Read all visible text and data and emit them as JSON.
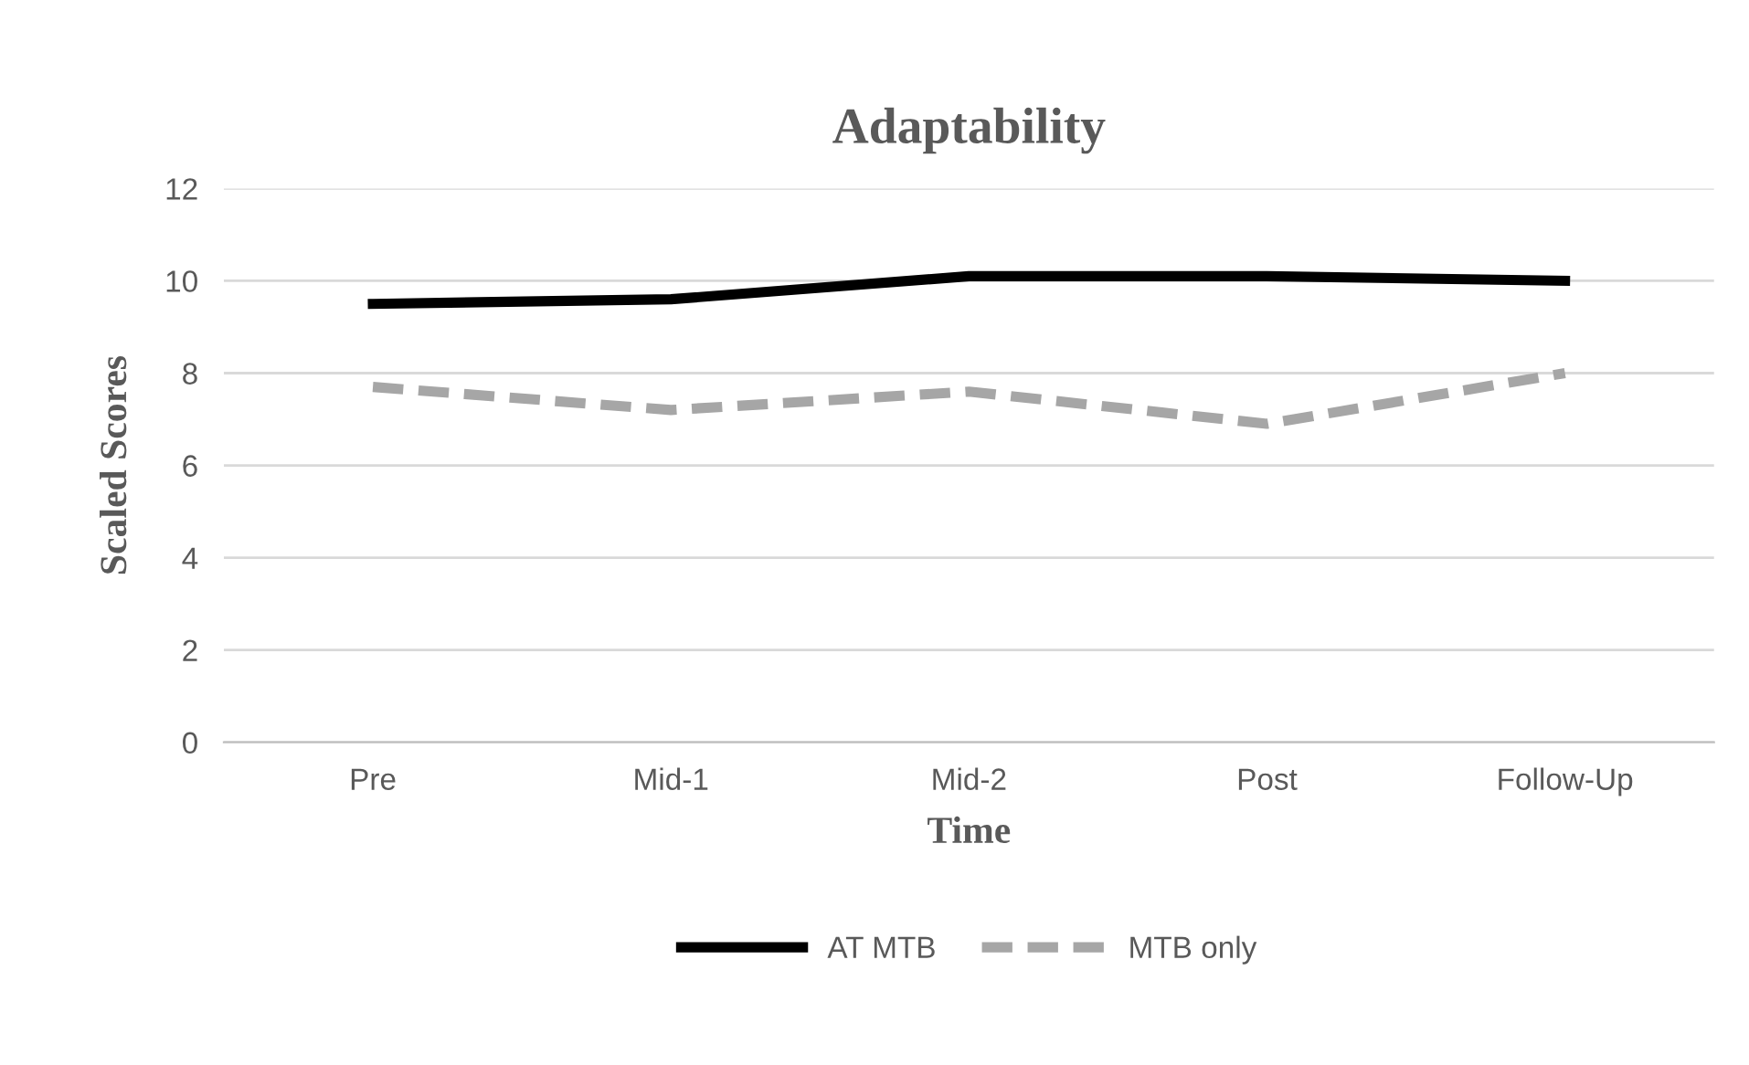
{
  "chart_data": {
    "type": "line",
    "title": "Adaptability",
    "xlabel": "Time",
    "ylabel": "Scaled Scores",
    "categories": [
      "Pre",
      "Mid-1",
      "Mid-2",
      "Post",
      "Follow-Up"
    ],
    "series": [
      {
        "name": "AT MTB",
        "color": "#000000",
        "values": [
          9.5,
          9.6,
          10.1,
          10.1,
          10.0
        ],
        "line_style": "solid"
      },
      {
        "name": "MTB only",
        "color": "#a6a6a6",
        "values": [
          7.7,
          7.2,
          7.6,
          6.9,
          8.0
        ],
        "line_style": "dashed"
      }
    ],
    "ylim": [
      0,
      12
    ],
    "yticks": [
      0,
      2,
      4,
      6,
      8,
      10,
      12
    ],
    "grid": "y",
    "legend": "bottom",
    "marker": "none"
  }
}
